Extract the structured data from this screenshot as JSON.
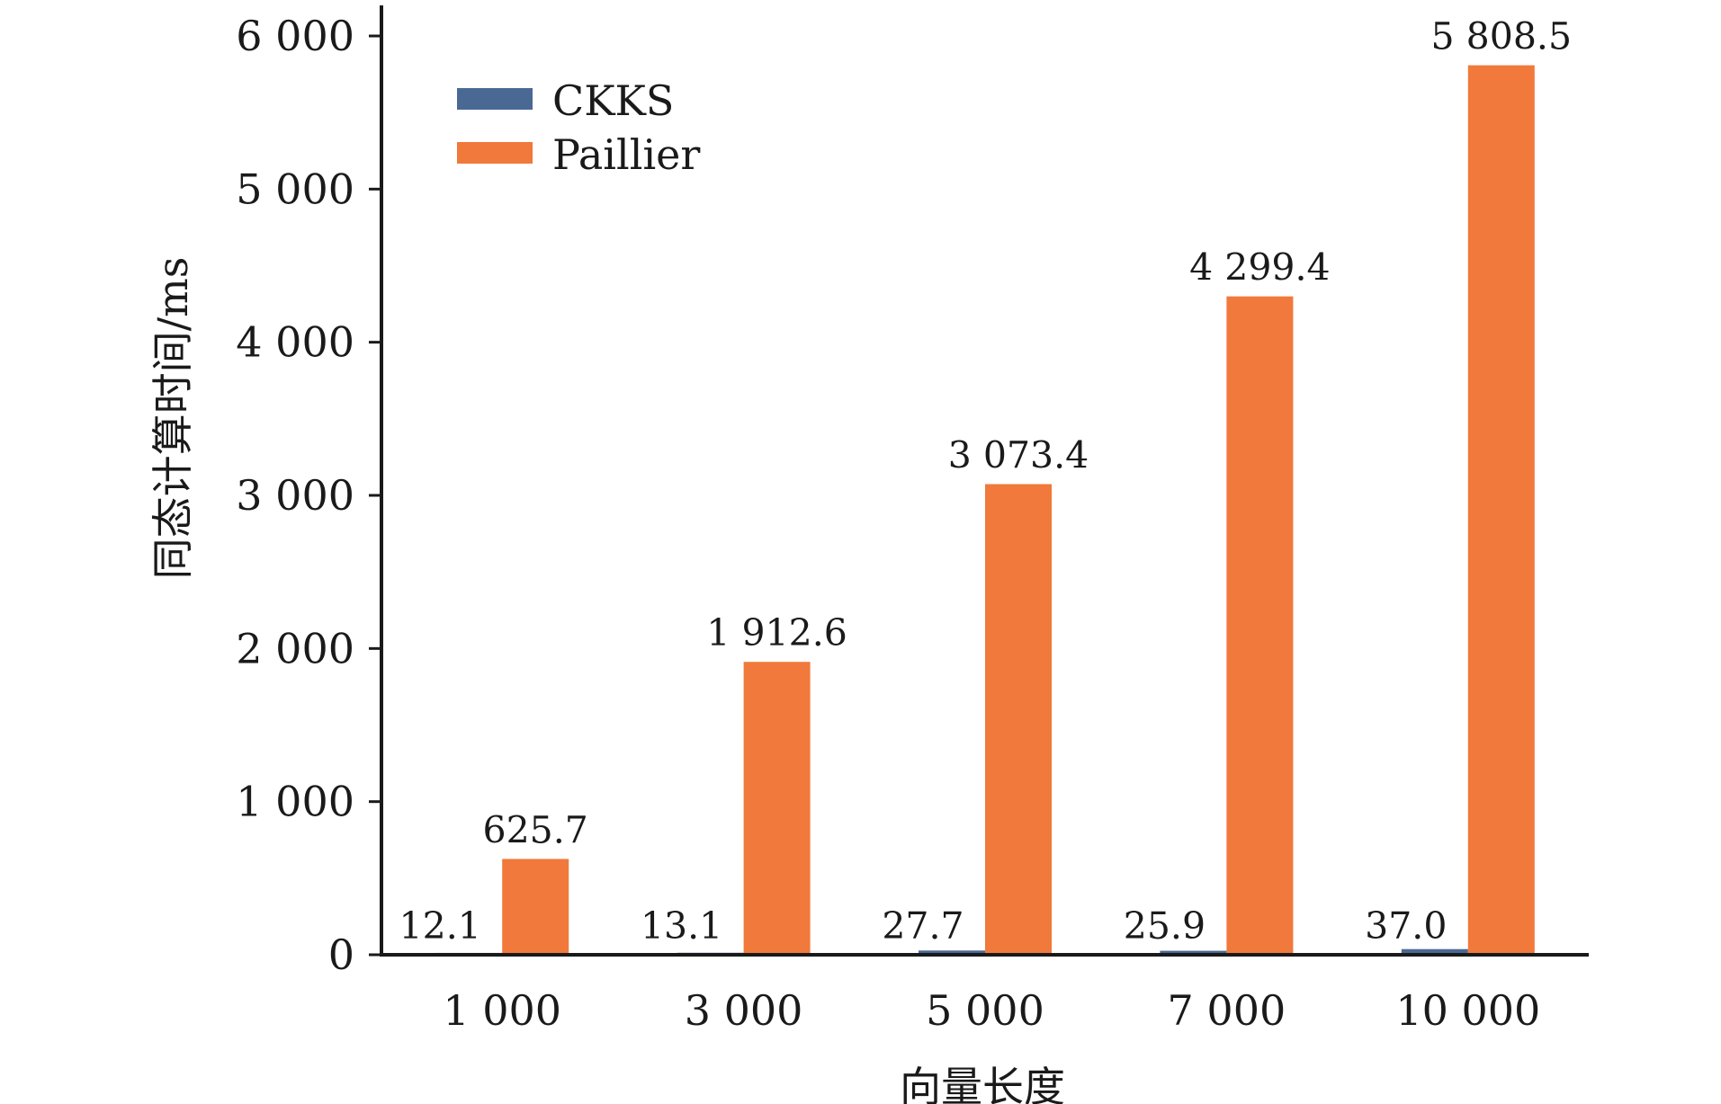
{
  "chart_data": {
    "type": "bar",
    "xlabel": "向量长度",
    "ylabel": "同态计算时间/ms",
    "ylim": [
      0,
      6000
    ],
    "yticks": [
      0,
      1000,
      2000,
      3000,
      4000,
      5000,
      6000
    ],
    "ytick_labels": [
      "0",
      "1 000",
      "2 000",
      "3 000",
      "4 000",
      "5 000",
      "6 000"
    ],
    "categories": [
      "1 000",
      "3 000",
      "5 000",
      "7 000",
      "10 000"
    ],
    "series": [
      {
        "name": "CKKS",
        "color": "#4a6894",
        "values": [
          12.1,
          13.1,
          27.7,
          25.9,
          37.0
        ],
        "labels": [
          "12.1",
          "13.1",
          "27.7",
          "25.9",
          "37.0"
        ]
      },
      {
        "name": "Paillier",
        "color": "#f0793b",
        "values": [
          625.7,
          1912.6,
          3073.4,
          4299.4,
          5808.5
        ],
        "labels": [
          "625.7",
          "1 912.6",
          "3 073.4",
          "4 299.4",
          "5 808.5"
        ]
      }
    ],
    "legend_position": "top-left",
    "grid": false
  }
}
